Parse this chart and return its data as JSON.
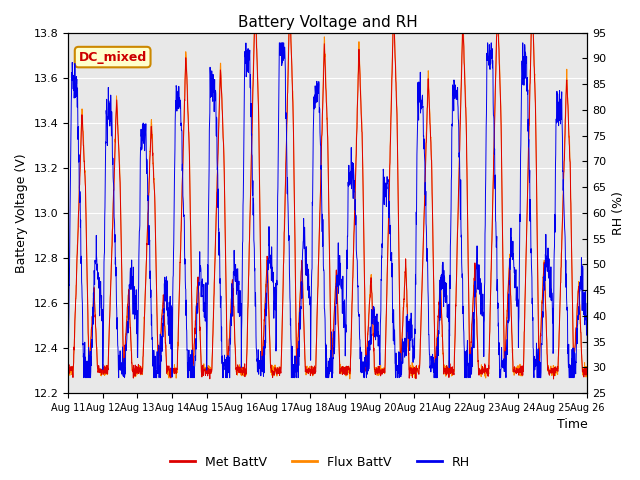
{
  "title": "Battery Voltage and RH",
  "xlabel": "Time",
  "ylabel_left": "Battery Voltage (V)",
  "ylabel_right": "RH (%)",
  "ylim_left": [
    12.2,
    13.8
  ],
  "ylim_right": [
    25,
    95
  ],
  "yticks_left": [
    12.2,
    12.4,
    12.6,
    12.8,
    13.0,
    13.2,
    13.4,
    13.6,
    13.8
  ],
  "yticks_right": [
    25,
    30,
    35,
    40,
    45,
    50,
    55,
    60,
    65,
    70,
    75,
    80,
    85,
    90,
    95
  ],
  "xtick_labels": [
    "Aug 11",
    "Aug 12",
    "Aug 13",
    "Aug 14",
    "Aug 15",
    "Aug 16",
    "Aug 17",
    "Aug 18",
    "Aug 19",
    "Aug 20",
    "Aug 21",
    "Aug 22",
    "Aug 23",
    "Aug 24",
    "Aug 25",
    "Aug 26"
  ],
  "color_met": "#dd0000",
  "color_flux": "#ff8800",
  "color_rh": "#0000ee",
  "bg_color": "#e8e8e8",
  "legend_label_met": "Met BattV",
  "legend_label_flux": "Flux BattV",
  "legend_label_rh": "RH",
  "annotation": "DC_mixed",
  "annotation_facecolor": "#ffffcc",
  "annotation_edgecolor": "#cc8800",
  "annotation_textcolor": "#cc0000",
  "figsize": [
    6.4,
    4.8
  ],
  "dpi": 100
}
